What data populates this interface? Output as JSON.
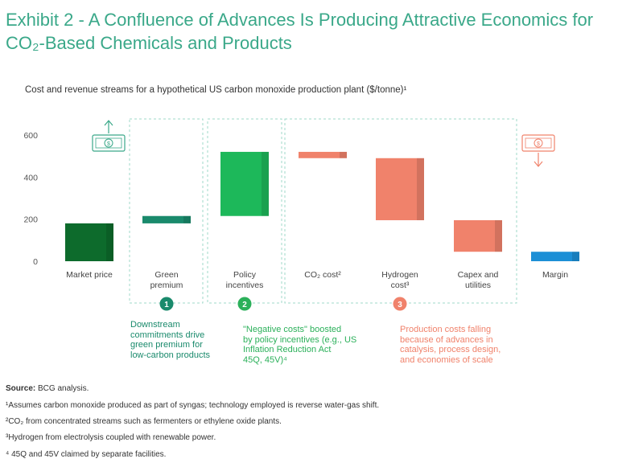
{
  "header": {
    "title": "Exhibit 2 - A Confluence of Advances Is Producing Attractive Economics for CO₂-Based Chemicals and Products",
    "subtitle": "Cost and revenue streams for a hypothetical US carbon monoxide production plant ($/tonne)¹"
  },
  "chart_data": {
    "type": "waterfall",
    "ylabel": "$/tonne",
    "ylim": [
      0,
      600
    ],
    "yticks": [
      "0",
      "200",
      "400",
      "600"
    ],
    "categories": [
      "Market price",
      "Green premium",
      "Policy incentives",
      "CO₂ cost²",
      "Hydrogen cost³",
      "Capex and utilities",
      "Margin"
    ],
    "bars": [
      {
        "name": "Market price",
        "start": 0,
        "end": 180,
        "color": "#0d6b2c"
      },
      {
        "name": "Green premium",
        "start": 180,
        "end": 215,
        "color": "#1a8a6c"
      },
      {
        "name": "Policy incentives",
        "start": 215,
        "end": 520,
        "color": "#1db85a"
      },
      {
        "name": "CO₂ cost",
        "start": 520,
        "end": 490,
        "color": "#f0826b"
      },
      {
        "name": "Hydrogen cost",
        "start": 490,
        "end": 195,
        "color": "#f0826b"
      },
      {
        "name": "Capex and utilities",
        "start": 195,
        "end": 45,
        "color": "#f0826b"
      },
      {
        "name": "Margin",
        "start": 0,
        "end": 45,
        "color": "#1c8fd6"
      }
    ],
    "icons": {
      "revenue": "money-up-icon",
      "cost": "money-down-icon"
    }
  },
  "labels": {
    "cat0": "Market price",
    "cat1": [
      "Green",
      "premium"
    ],
    "cat2": [
      "Policy",
      "incentives"
    ],
    "cat3": "CO₂ cost²",
    "cat4": [
      "Hydrogen",
      "cost³"
    ],
    "cat5": [
      "Capex and",
      "utilities"
    ],
    "cat6": "Margin"
  },
  "annotations": [
    {
      "num": "1",
      "color": "#1a8a6c",
      "lines": [
        "Downstream",
        "commitments drive",
        "green premium for",
        "low-carbon products"
      ]
    },
    {
      "num": "2",
      "color": "#2bb05a",
      "lines": [
        "\"Negative costs\" boosted",
        "by policy incentives (e.g., US",
        "Inflation Reduction Act",
        "45Q, 45V)⁴"
      ]
    },
    {
      "num": "3",
      "color": "#f0826b",
      "lines": [
        "Production costs falling",
        "because of advances in",
        "catalysis, process design,",
        "and economies of scale"
      ]
    }
  ],
  "footer": {
    "source_label": "Source:",
    "source_text": " BCG analysis.",
    "notes": [
      "¹Assumes carbon monoxide produced as part of syngas; technology employed is reverse water-gas shift.",
      "²CO₂ from concentrated streams such as fermenters or ethylene oxide plants.",
      "³Hydrogen from electrolysis coupled with renewable power.",
      "⁴ 45Q and 45V claimed by separate facilities."
    ]
  }
}
